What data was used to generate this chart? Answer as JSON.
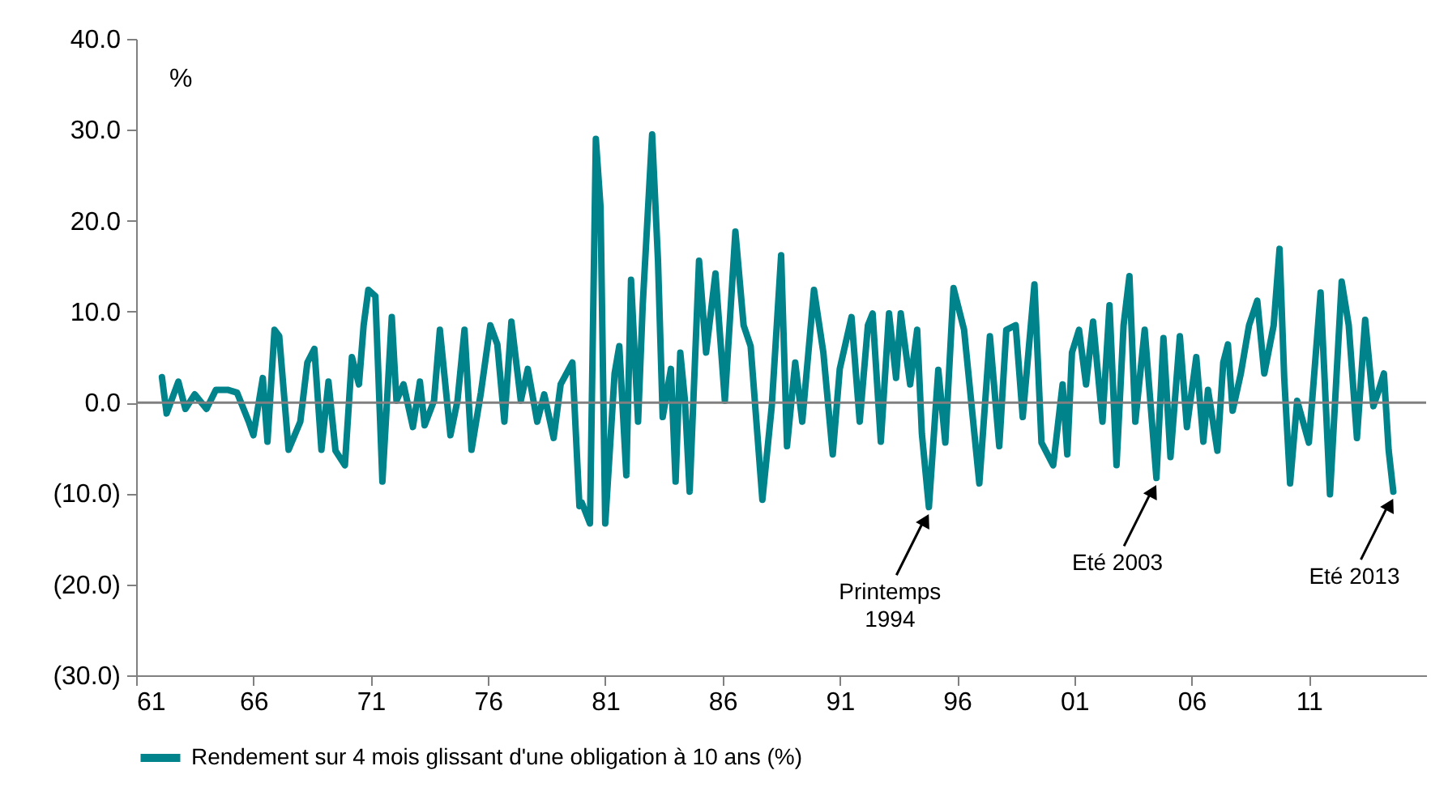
{
  "chart_data": {
    "type": "line",
    "ylabel": "%",
    "x": [
      1962.1,
      1962.3,
      1962.8,
      1963.1,
      1963.5,
      1964.0,
      1964.4,
      1964.9,
      1965.3,
      1965.8,
      1966.0,
      1966.4,
      1966.6,
      1966.9,
      1967.1,
      1967.5,
      1968.0,
      1968.3,
      1968.6,
      1968.9,
      1969.2,
      1969.5,
      1969.9,
      1970.2,
      1970.5,
      1970.7,
      1970.9,
      1971.2,
      1971.3,
      1971.5,
      1971.9,
      1972.1,
      1972.4,
      1972.8,
      1973.1,
      1973.3,
      1973.7,
      1973.95,
      1974.4,
      1974.7,
      1975.0,
      1975.3,
      1975.7,
      1976.1,
      1976.4,
      1976.7,
      1977.0,
      1977.4,
      1977.7,
      1978.1,
      1978.4,
      1978.8,
      1979.1,
      1979.6,
      1979.9,
      1980.0,
      1980.35,
      1980.6,
      1980.8,
      1981.0,
      1981.4,
      1981.6,
      1981.9,
      1982.1,
      1982.4,
      1982.6,
      1983.0,
      1983.25,
      1983.45,
      1983.8,
      1984.0,
      1984.2,
      1984.4,
      1984.6,
      1985.0,
      1985.3,
      1985.7,
      1986.1,
      1986.55,
      1986.9,
      1987.2,
      1987.7,
      1988.1,
      1988.5,
      1988.75,
      1989.1,
      1989.4,
      1989.9,
      1990.3,
      1990.7,
      1991.0,
      1991.5,
      1991.85,
      1992.2,
      1992.4,
      1992.75,
      1993.1,
      1993.4,
      1993.6,
      1994.0,
      1994.3,
      1994.5,
      1994.8,
      1995.2,
      1995.5,
      1995.85,
      1996.3,
      1996.6,
      1996.95,
      1997.4,
      1997.8,
      1998.1,
      1998.5,
      1998.8,
      1999.3,
      1999.6,
      2000.1,
      2000.5,
      2000.7,
      2000.9,
      2001.2,
      2001.5,
      2001.8,
      2002.2,
      2002.5,
      2002.8,
      2003.1,
      2003.35,
      2003.6,
      2004.0,
      2004.5,
      2004.8,
      2005.1,
      2005.5,
      2005.8,
      2006.2,
      2006.5,
      2006.7,
      2007.1,
      2007.35,
      2007.55,
      2007.75,
      2008.1,
      2008.45,
      2008.8,
      2009.1,
      2009.5,
      2009.75,
      2009.95,
      2010.2,
      2010.5,
      2011.0,
      2011.5,
      2011.9,
      2012.4,
      2012.7,
      2013.05,
      2013.4,
      2013.75,
      2013.95,
      2014.2,
      2014.4,
      2014.6
    ],
    "series": [
      {
        "name": "Rendement sur 4 mois glissant d'une obligation à 10 ans (%)",
        "color": "#00838a",
        "values": [
          2.8,
          -1.2,
          2.3,
          -0.7,
          0.9,
          -0.7,
          1.4,
          1.4,
          1.1,
          -2.1,
          -3.6,
          2.7,
          -4.3,
          8.0,
          7.3,
          -5.2,
          -2.1,
          4.4,
          5.9,
          -5.2,
          2.3,
          -5.3,
          -6.9,
          5.0,
          2.0,
          8.5,
          12.4,
          11.7,
          5.0,
          -8.7,
          9.4,
          0.2,
          2.0,
          -2.7,
          2.3,
          -2.5,
          0.2,
          8.0,
          -3.6,
          0.2,
          8.0,
          -5.2,
          1.1,
          8.5,
          6.4,
          -2.1,
          8.9,
          0.2,
          3.7,
          -2.1,
          0.9,
          -3.9,
          2.0,
          4.4,
          -11.4,
          -11.0,
          -13.3,
          29.0,
          21.5,
          -13.3,
          3.2,
          6.2,
          -8.0,
          13.5,
          -2.1,
          10.8,
          29.5,
          15.6,
          -1.6,
          3.7,
          -8.7,
          5.5,
          0.2,
          -9.8,
          15.6,
          5.5,
          14.2,
          0.2,
          18.8,
          8.5,
          6.2,
          -10.7,
          -0.4,
          16.2,
          -4.8,
          4.4,
          -2.1,
          12.4,
          5.5,
          -5.7,
          3.7,
          9.4,
          -2.1,
          8.5,
          9.8,
          -4.3,
          9.8,
          2.7,
          9.8,
          2.0,
          8.0,
          -3.4,
          -11.5,
          3.6,
          -4.4,
          12.6,
          8.0,
          0.2,
          -8.9,
          7.3,
          -4.8,
          8.0,
          8.5,
          -1.6,
          13.0,
          -4.4,
          -6.9,
          2.0,
          -5.7,
          5.5,
          8.0,
          2.0,
          8.9,
          -2.1,
          10.7,
          -6.9,
          8.5,
          13.9,
          -2.1,
          8.0,
          -8.3,
          7.1,
          -6.0,
          7.3,
          -2.7,
          5.0,
          -4.3,
          1.4,
          -5.3,
          4.4,
          6.4,
          -0.9,
          3.2,
          8.5,
          11.2,
          3.2,
          8.5,
          16.9,
          2.7,
          -8.9,
          0.2,
          -4.4,
          12.1,
          -10.1,
          13.3,
          8.5,
          -3.9,
          9.1,
          -0.4,
          1.1,
          3.2,
          -5.2,
          -9.8
        ]
      }
    ],
    "xlim": [
      1961,
      2016
    ],
    "xticks": [
      {
        "value": 1961,
        "label": "61"
      },
      {
        "value": 1966,
        "label": "66"
      },
      {
        "value": 1971,
        "label": "71"
      },
      {
        "value": 1976,
        "label": "76"
      },
      {
        "value": 1981,
        "label": "81"
      },
      {
        "value": 1986,
        "label": "86"
      },
      {
        "value": 1991,
        "label": "91"
      },
      {
        "value": 1996,
        "label": "96"
      },
      {
        "value": 2001,
        "label": "01"
      },
      {
        "value": 2006,
        "label": "06"
      },
      {
        "value": 2011,
        "label": "11"
      }
    ],
    "ylim": [
      -30,
      40
    ],
    "yticks": [
      {
        "value": -30,
        "label": "(30.0)"
      },
      {
        "value": -20,
        "label": "(20.0)"
      },
      {
        "value": -10,
        "label": "(10.0)"
      },
      {
        "value": 0,
        "label": "0.0"
      },
      {
        "value": 10,
        "label": "10.0"
      },
      {
        "value": 20,
        "label": "20.0"
      },
      {
        "value": 30,
        "label": "30.0"
      },
      {
        "value": 40,
        "label": "40.0"
      }
    ],
    "ref_lines": [
      {
        "axis": "y",
        "value": 0,
        "color": "#808080"
      }
    ],
    "annotations": [
      {
        "text": "Printemps\n1994",
        "x": 1994.8,
        "y": -11.5
      },
      {
        "text": "Eté 2003",
        "x": 2004.5,
        "y": -8.3
      },
      {
        "text": "Eté 2013",
        "x": 2014.6,
        "y": -9.8
      }
    ],
    "legend": "bottom",
    "marker": "none",
    "line_style": "solid",
    "grid": false
  }
}
